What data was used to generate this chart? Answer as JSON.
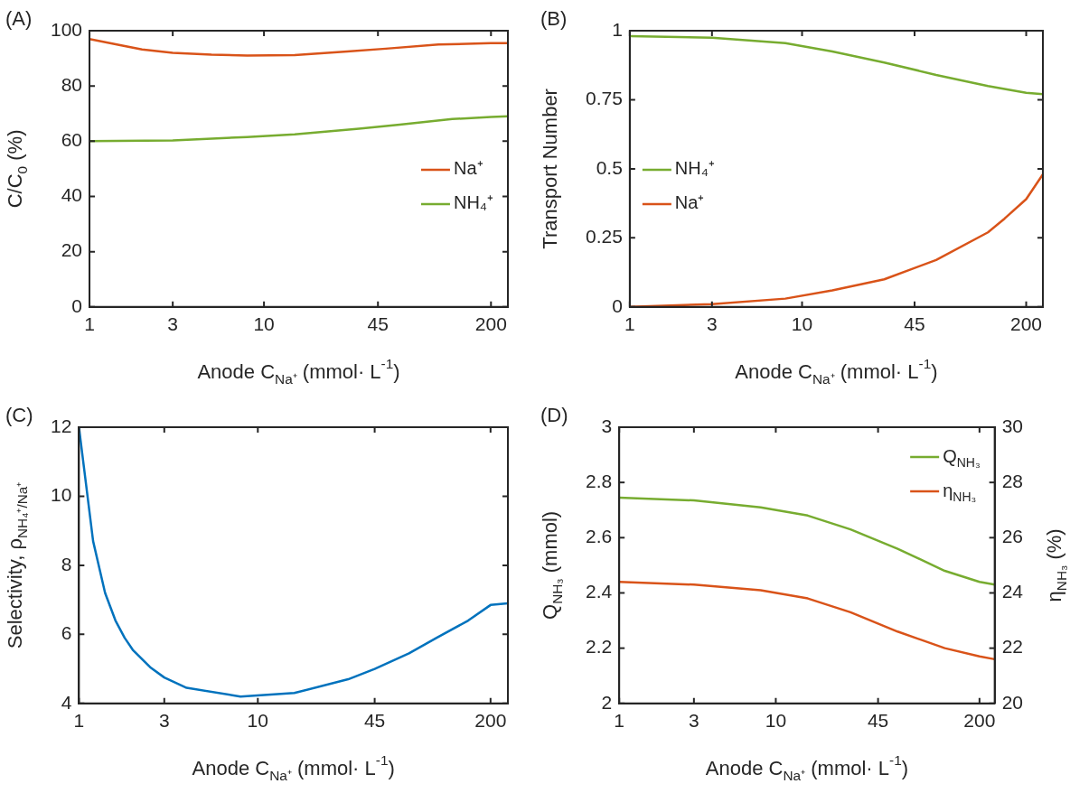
{
  "chart_data": [
    {
      "type": "line",
      "title": "(A)",
      "xlabel": "Anode C$_{Na⁺}$ (mmol· L$^{-1}$)",
      "ylabel": "C/C$_{0}$ (%)",
      "log": "x",
      "xlim": [
        1,
        250
      ],
      "xticks": [
        1,
        3,
        10,
        45,
        200
      ],
      "ylim": [
        0,
        100
      ],
      "yticks": [
        0,
        20,
        40,
        60,
        80,
        100
      ],
      "grid": false,
      "legend": "right",
      "series": [
        {
          "name": "Na⁺",
          "color": "#d95319",
          "x": [
            1,
            1.5,
            2,
            3,
            5,
            8,
            15,
            30,
            50,
            100,
            200,
            250
          ],
          "values": [
            97,
            94.8,
            93.2,
            92,
            91.3,
            91,
            91.2,
            92.5,
            93.5,
            95,
            95.5,
            95.5
          ]
        },
        {
          "name": "NH₄⁺",
          "color": "#77ac30",
          "x": [
            1,
            3,
            8,
            15,
            35,
            60,
            120,
            200,
            250
          ],
          "values": [
            60,
            60.3,
            61.5,
            62.5,
            64.5,
            66,
            68,
            68.8,
            69
          ]
        }
      ]
    },
    {
      "type": "line",
      "title": "(B)",
      "xlabel": "Anode C$_{Na⁺}$ (mmol· L$^{-1}$)",
      "ylabel": "Transport Number",
      "log": "x",
      "xlim": [
        1,
        250
      ],
      "xticks": [
        1,
        3,
        10,
        45,
        200
      ],
      "ylim": [
        0,
        1
      ],
      "yticks": [
        0,
        0.25,
        0.5,
        0.75,
        1
      ],
      "grid": false,
      "legend": "left",
      "series": [
        {
          "name": "NH₄⁺",
          "color": "#77ac30",
          "x": [
            1,
            3,
            8,
            15,
            30,
            60,
            120,
            200,
            250
          ],
          "values": [
            0.98,
            0.975,
            0.955,
            0.925,
            0.885,
            0.84,
            0.8,
            0.775,
            0.77
          ]
        },
        {
          "name": "Na⁺",
          "color": "#d95319",
          "x": [
            1,
            3,
            8,
            15,
            30,
            60,
            120,
            150,
            200,
            250
          ],
          "values": [
            0,
            0.01,
            0.03,
            0.06,
            0.1,
            0.17,
            0.27,
            0.32,
            0.39,
            0.48
          ]
        }
      ]
    },
    {
      "type": "line",
      "title": "(C)",
      "xlabel": "Anode C$_{Na⁺}$ (mmol· L$^{-1}$)",
      "ylabel": "Selectivity, ρ$_{NH₄⁺/Na⁺}$",
      "log": "x",
      "xlim": [
        1,
        250
      ],
      "xticks": [
        1,
        3,
        10,
        45,
        200
      ],
      "ylim": [
        4,
        12
      ],
      "yticks": [
        4,
        6,
        8,
        10,
        12
      ],
      "grid": false,
      "series": [
        {
          "color": "#0072bd",
          "x": [
            1,
            1.2,
            1.4,
            1.6,
            1.8,
            2,
            2.5,
            3,
            4,
            8,
            16,
            32,
            45,
            70,
            100,
            150,
            200,
            250
          ],
          "values": [
            12,
            8.7,
            7.2,
            6.4,
            5.9,
            5.55,
            5.05,
            4.75,
            4.45,
            4.2,
            4.3,
            4.7,
            5.0,
            5.45,
            5.9,
            6.4,
            6.85,
            6.9
          ]
        }
      ]
    },
    {
      "type": "line",
      "title": "(D)",
      "xlabel": "Anode C$_{Na⁺}$ (mmol· L$^{-1}$)",
      "ylabel": "Q$_{NH₃}$ (mmol)",
      "y2label": "η$_{NH₃}$ (%)",
      "log": "x",
      "xlim": [
        1,
        250
      ],
      "xticks": [
        1,
        3,
        10,
        45,
        200
      ],
      "ylim": [
        2,
        3
      ],
      "yticks": [
        2,
        2.2,
        2.4,
        2.6,
        2.8,
        3
      ],
      "y2lim": [
        20,
        30
      ],
      "y2ticks": [
        20,
        22,
        24,
        26,
        28,
        30
      ],
      "grid": false,
      "legend": "top right",
      "series": [
        {
          "name": "Q$_{NH₃}$",
          "color": "#77ac30",
          "x": [
            1,
            3,
            8,
            16,
            30,
            60,
            120,
            200,
            250
          ],
          "values": [
            2.745,
            2.735,
            2.71,
            2.68,
            2.63,
            2.56,
            2.48,
            2.44,
            2.43
          ]
        },
        {
          "name": "η$_{NH₃}$",
          "color": "#d95319",
          "axis": "y2",
          "x": [
            1,
            3,
            8,
            16,
            30,
            60,
            120,
            200,
            250
          ],
          "values": [
            24.4,
            24.3,
            24.1,
            23.8,
            23.3,
            22.6,
            22.0,
            21.7,
            21.6
          ]
        }
      ]
    }
  ]
}
